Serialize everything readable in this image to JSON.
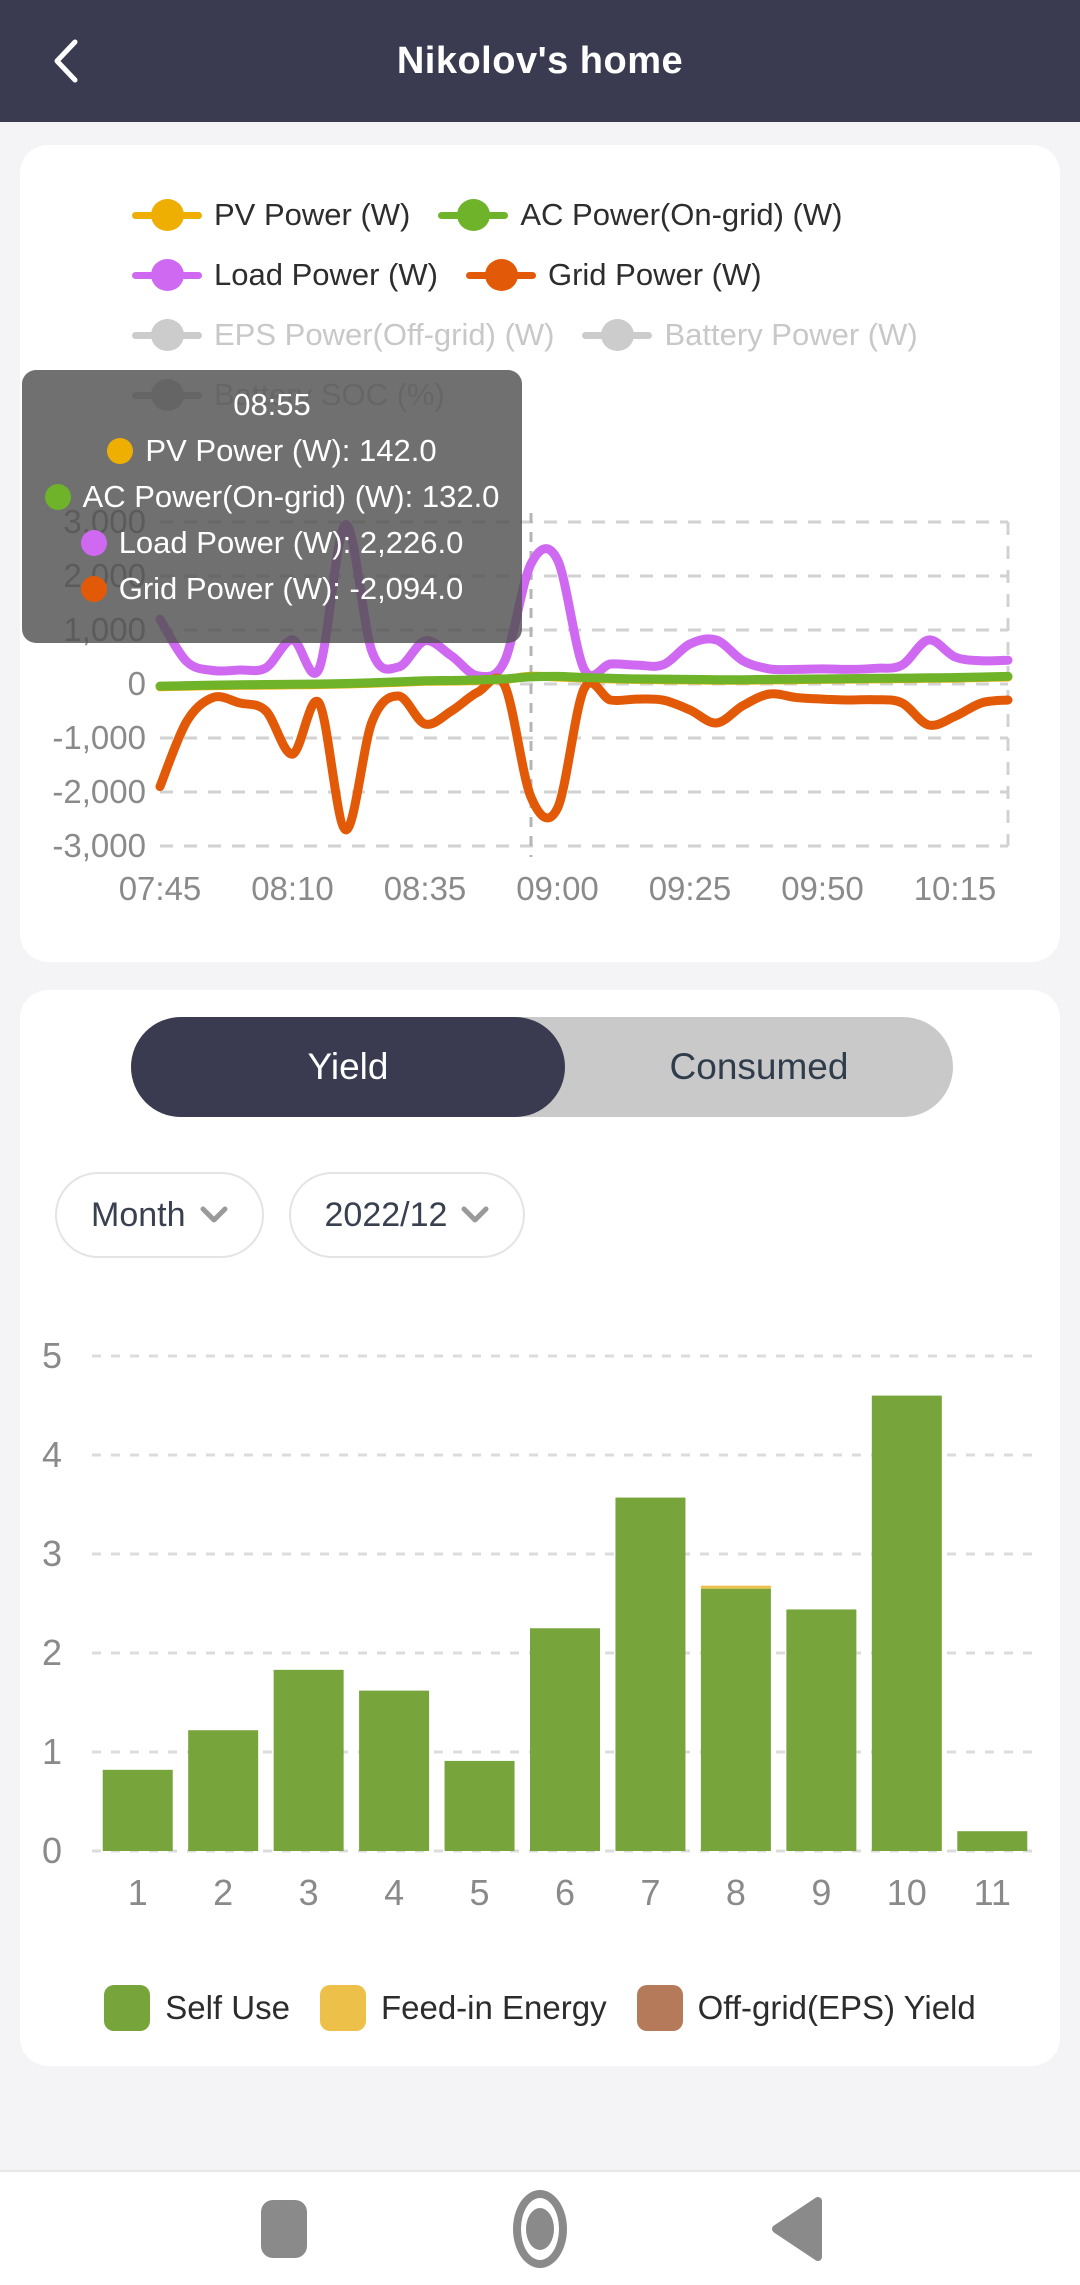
{
  "colors": {
    "header_bg": "#3a3b50",
    "page_bg": "#f4f4f6",
    "card_bg": "#ffffff",
    "toggle_track": "#c9c9c9",
    "axis_text": "#8a8a8a",
    "grid_line": "#d2d2d2",
    "tooltip_bg": "rgba(80,80,80,0.82)"
  },
  "header": {
    "title": "Nikolov's home"
  },
  "power_chart": {
    "legend": [
      {
        "label": "PV Power (W)",
        "color": "#efae02",
        "enabled": true
      },
      {
        "label": "AC Power(On-grid) (W)",
        "color": "#6fb32a",
        "enabled": true
      },
      {
        "label": "Load Power (W)",
        "color": "#cf69f1",
        "enabled": true
      },
      {
        "label": "Grid Power (W)",
        "color": "#e25a07",
        "enabled": true
      },
      {
        "label": "EPS Power(Off-grid) (W)",
        "color": "#cccccc",
        "enabled": false
      },
      {
        "label": "Battery Power (W)",
        "color": "#cccccc",
        "enabled": false
      },
      {
        "label": "Battery SOC (%)",
        "color": "#c4c4c4",
        "enabled": false
      }
    ],
    "legend_rows": [
      [
        0,
        1
      ],
      [
        2,
        3
      ],
      [
        4,
        5
      ],
      [
        6
      ]
    ],
    "tooltip": {
      "time": "08:55",
      "items": [
        {
          "label": "PV Power (W)",
          "value": "142.0",
          "color": "#efae02"
        },
        {
          "label": "AC Power(On-grid) (W)",
          "value": "132.0",
          "color": "#6fb32a"
        },
        {
          "label": "Load Power (W)",
          "value": "2,226.0",
          "color": "#cf69f1"
        },
        {
          "label": "Grid Power (W)",
          "value": "-2,094.0",
          "color": "#e25a07"
        }
      ]
    },
    "chart_data": {
      "type": "line",
      "x": [
        "07:45",
        "07:50",
        "07:55",
        "08:00",
        "08:05",
        "08:10",
        "08:15",
        "08:20",
        "08:25",
        "08:30",
        "08:35",
        "08:40",
        "08:45",
        "08:50",
        "08:55",
        "09:00",
        "09:05",
        "09:10",
        "09:15",
        "09:20",
        "09:25",
        "09:30",
        "09:35",
        "09:40",
        "09:45",
        "09:50",
        "09:55",
        "10:00",
        "10:05",
        "10:10",
        "10:15",
        "10:20",
        "10:25"
      ],
      "xticks": [
        "07:45",
        "08:10",
        "08:35",
        "09:00",
        "09:25",
        "09:50",
        "10:15"
      ],
      "xtick_step": 5,
      "yticks": [
        3000,
        2000,
        1000,
        0,
        -1000,
        -2000,
        -3000
      ],
      "ylim": [
        -3000,
        3000
      ],
      "crosshair_index": 14,
      "series": [
        {
          "name": "PV Power (W)",
          "color": "#efae02",
          "values": [
            -50,
            -40,
            -30,
            -25,
            -20,
            -15,
            -10,
            0,
            15,
            30,
            50,
            55,
            65,
            85,
            142,
            130,
            110,
            95,
            85,
            80,
            75,
            70,
            70,
            75,
            80,
            85,
            90,
            95,
            100,
            105,
            110,
            120,
            130
          ]
        },
        {
          "name": "Load Power (W)",
          "color": "#cf69f1",
          "values": [
            1200,
            420,
            250,
            260,
            300,
            820,
            280,
            2950,
            600,
            315,
            800,
            520,
            150,
            420,
            2226,
            2300,
            280,
            370,
            350,
            360,
            740,
            815,
            430,
            280,
            270,
            280,
            270,
            290,
            350,
            815,
            500,
            430,
            440
          ]
        },
        {
          "name": "Grid Power (W)",
          "color": "#e25a07",
          "values": [
            -1900,
            -700,
            -250,
            -350,
            -500,
            -1300,
            -350,
            -2700,
            -700,
            -222,
            -740,
            -500,
            -150,
            -20,
            -2094,
            -2300,
            -92,
            -296,
            -280,
            -300,
            -481,
            -722,
            -400,
            -185,
            -250,
            -280,
            -296,
            -290,
            -350,
            -759,
            -600,
            -350,
            -296
          ]
        },
        {
          "name": "AC Power(On-grid) (W)",
          "color": "#6fb32a",
          "values": [
            -40,
            -30,
            -20,
            -15,
            -10,
            -5,
            0,
            10,
            25,
            40,
            60,
            65,
            75,
            95,
            132,
            140,
            120,
            105,
            95,
            90,
            85,
            80,
            80,
            85,
            90,
            95,
            100,
            105,
            110,
            115,
            120,
            130,
            140
          ]
        }
      ]
    }
  },
  "energy_card": {
    "tabs": [
      {
        "label": "Yield",
        "selected": true
      },
      {
        "label": "Consumed",
        "selected": false
      }
    ],
    "filters": {
      "period": "Month",
      "date": "2022/12"
    },
    "chart_data": {
      "type": "bar",
      "categories": [
        "1",
        "2",
        "3",
        "4",
        "5",
        "6",
        "7",
        "8",
        "9",
        "10",
        "11"
      ],
      "ylim": [
        0,
        5
      ],
      "yticks": [
        0,
        1,
        2,
        3,
        4,
        5
      ],
      "series": [
        {
          "name": "Self Use",
          "color": "#78a43c",
          "values": [
            0.82,
            1.22,
            1.83,
            1.62,
            0.91,
            2.25,
            3.57,
            2.65,
            2.44,
            4.6,
            0.2
          ]
        },
        {
          "name": "Feed-in Energy",
          "color": "#edc04a",
          "values": [
            0,
            0,
            0,
            0,
            0,
            0,
            0,
            0.03,
            0,
            0,
            0
          ]
        },
        {
          "name": "Off-grid(EPS) Yield",
          "color": "#b57a59",
          "values": [
            0,
            0,
            0,
            0,
            0,
            0,
            0,
            0,
            0,
            0,
            0
          ]
        }
      ]
    },
    "legend": [
      {
        "label": "Self Use",
        "color": "#78a43c"
      },
      {
        "label": "Feed-in Energy",
        "color": "#edc04a"
      },
      {
        "label": "Off-grid(EPS) Yield",
        "color": "#b57a59"
      }
    ]
  },
  "nav_bar": {
    "recents": "recents-square",
    "home": "home-circle",
    "back": "back-triangle"
  }
}
